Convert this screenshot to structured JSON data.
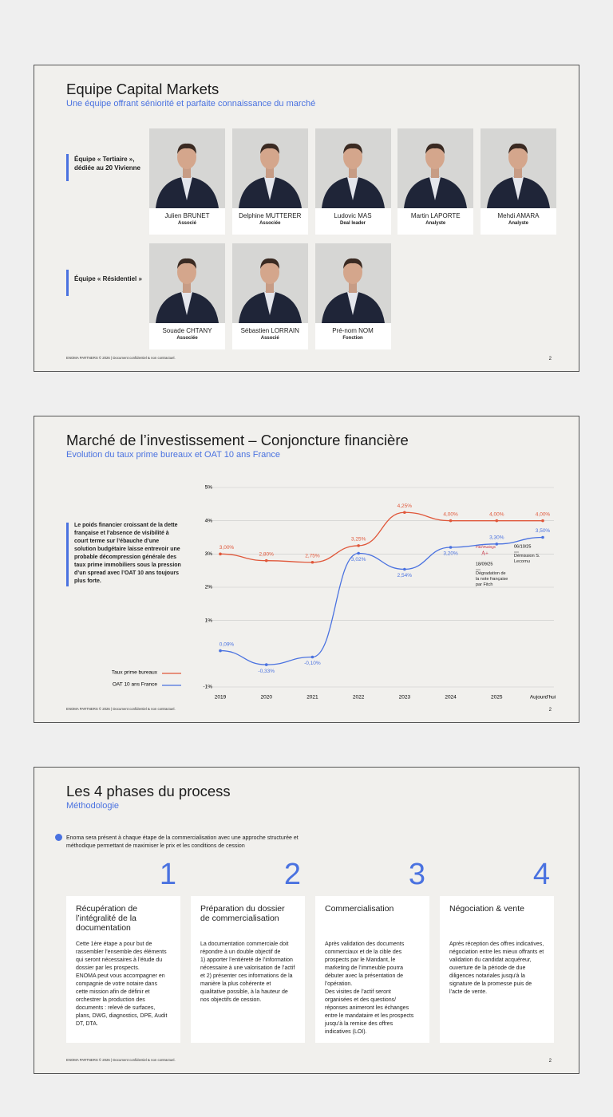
{
  "footer": "ENOMA PARTNERS © 2026 | Document confidentiel & non contractuel.",
  "page_number": 2,
  "slide1": {
    "title": "Equipe Capital Markets",
    "subtitle": "Une équipe offrant séniorité et parfaite connaissance du marché",
    "groups": [
      {
        "label": "Équipe « Tertiaire », dédiée au 20 Vivienne",
        "members": [
          {
            "name": "Julien BRUNET",
            "role": "Associé"
          },
          {
            "name": "Delphine MUTTERER",
            "role": "Associée"
          },
          {
            "name": "Ludovic MAS",
            "role": "Deal leader"
          },
          {
            "name": "Martin LAPORTE",
            "role": "Analyste"
          },
          {
            "name": "Mehdi AMARA",
            "role": "Analyste"
          }
        ]
      },
      {
        "label": "Équipe « Résidentiel »",
        "members": [
          {
            "name": "Souade CHTANY",
            "role": "Associée"
          },
          {
            "name": "Sébastien LORRAIN",
            "role": "Associé"
          },
          {
            "name": "Pré-nom NOM",
            "role": "Fonction"
          }
        ]
      }
    ]
  },
  "slide2": {
    "title": "Marché de l’investissement – Conjoncture financière",
    "subtitle": "Evolution du taux prime bureaux et OAT 10 ans France",
    "text": "Le poids financier croissant de la dette française et l’absence de visibilité à court terme sur l’ébauche d’une solution budgétaire laisse entrevoir une probable décompression générale des taux prime immobiliers sous la pression d’un spread avec l’OAT 10 ans toujours plus forte."
  },
  "chart_data": {
    "type": "line",
    "categories": [
      "2019",
      "2020",
      "2021",
      "2022",
      "2023",
      "2024",
      "2025",
      "Aujourd'hui"
    ],
    "series": [
      {
        "name": "Taux prime bureaux",
        "color": "#e0573a",
        "values": [
          3.0,
          2.8,
          2.75,
          3.25,
          4.25,
          4.0,
          4.0,
          4.0
        ],
        "value_labels": [
          "3,00%",
          "2,80%",
          "2,75%",
          "3,25%",
          "4,25%",
          "4,00%",
          "4,00%",
          "4,00%"
        ]
      },
      {
        "name": "OAT 10 ans France",
        "color": "#4a72e0",
        "values": [
          0.09,
          -0.33,
          -0.1,
          3.02,
          2.54,
          3.2,
          3.3,
          3.5
        ],
        "value_labels": [
          "0,09%",
          "-0,33%",
          "-0,10%",
          "3,02%",
          "2,54%",
          "3,20%",
          "3,30%",
          "3,50%"
        ]
      }
    ],
    "ylim": [
      -1,
      5
    ],
    "yticks": [
      {
        "value": 5,
        "label": "5%"
      },
      {
        "value": 4,
        "label": "4%"
      },
      {
        "value": 3,
        "label": "3%"
      },
      {
        "value": 2,
        "label": "2%"
      },
      {
        "value": 1,
        "label": "1%"
      },
      {
        "value": -1,
        "label": "-1%"
      }
    ],
    "grid": true,
    "annotations": [
      {
        "logo": "FitchRatings",
        "rating": "A+",
        "date": "18/09/25",
        "text": "Dégradation de la note française par Fitch"
      },
      {
        "date": "06/10/25",
        "text": "Démission S. Lecornu"
      }
    ]
  },
  "slide3": {
    "title": "Les 4 phases du process",
    "subtitle": "Méthodologie",
    "intro": "Enoma sera présent à chaque étape de la commercialisation avec une approche structurée et méthodique permettant de maximiser le prix et les conditions de cession",
    "phases": [
      {
        "number": 1,
        "title": "Récupération de l’intégralité de la documentation",
        "body": "Cette 1ère étape a pour but de rassembler l’ensemble des éléments qui seront nécessaires à l’étude du dossier par les prospects.\nENOMA peut vous accompagner en compagnie de votre notaire dans cette mission afin de définir et orchestrer la production des documents : relevé de surfaces, plans, DWG, diagnostics, DPE, Audit DT, DTA."
      },
      {
        "number": 2,
        "title": "Préparation du dossier de commercialisation",
        "body": "La documentation commerciale doit répondre à un double objectif de\n1) apporter l’entièreté de l’information nécessaire à une valorisation de l’actif et 2) présenter ces informations de la manière la plus cohérente et qualitative possible, à la hauteur de nos objectifs de cession."
      },
      {
        "number": 3,
        "title": "Commercialisation",
        "body": "Après validation des documents commerciaux et de la cible des prospects par le Mandant, le marketing de l’immeuble pourra débuter avec la présentation de l’opération.\nDes visites de l’actif seront organisées et des questions/ réponses animeront les échanges entre le mandataire et les prospects jusqu’à la remise des offres indicatives (LOI)."
      },
      {
        "number": 4,
        "title": "Négociation & vente",
        "body": "Après réception des offres indicatives, négociation entre les mieux offrants et validation du candidat acquéreur, ouverture de la période de due diligences notariales jusqu’à la signature de la promesse puis de l’acte de vente."
      }
    ]
  }
}
